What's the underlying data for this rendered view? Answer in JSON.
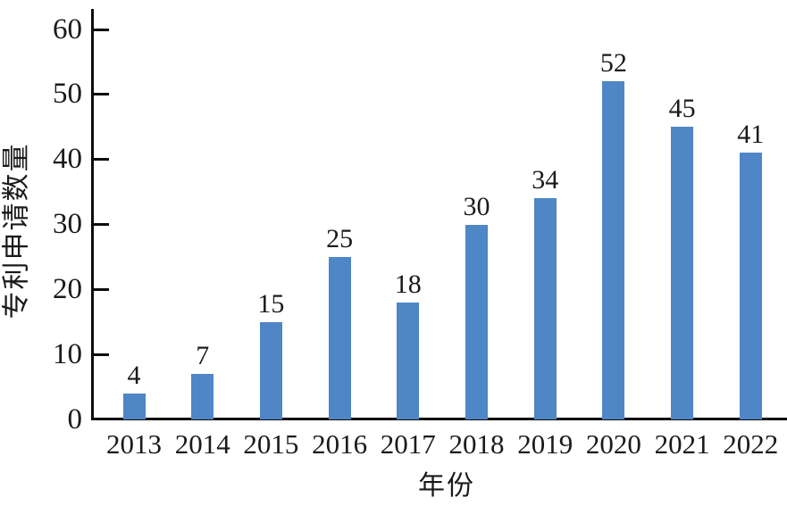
{
  "chart_data": {
    "type": "bar",
    "title": "",
    "xlabel": "年份",
    "ylabel": "专利申请数量",
    "categories": [
      "2013",
      "2014",
      "2015",
      "2016",
      "2017",
      "2018",
      "2019",
      "2020",
      "2021",
      "2022"
    ],
    "values": [
      4,
      7,
      15,
      25,
      18,
      30,
      34,
      52,
      45,
      41
    ],
    "ylim": [
      0,
      60
    ],
    "yticks": [
      0,
      10,
      20,
      30,
      40,
      50,
      60
    ],
    "grid": false,
    "legend": "none",
    "value_labels_shown": true,
    "bar_color": "#4E86C6",
    "axis_color": "#0D0D0D",
    "text_color": "#1A1A1A",
    "background_color": "#FFFFFF"
  }
}
